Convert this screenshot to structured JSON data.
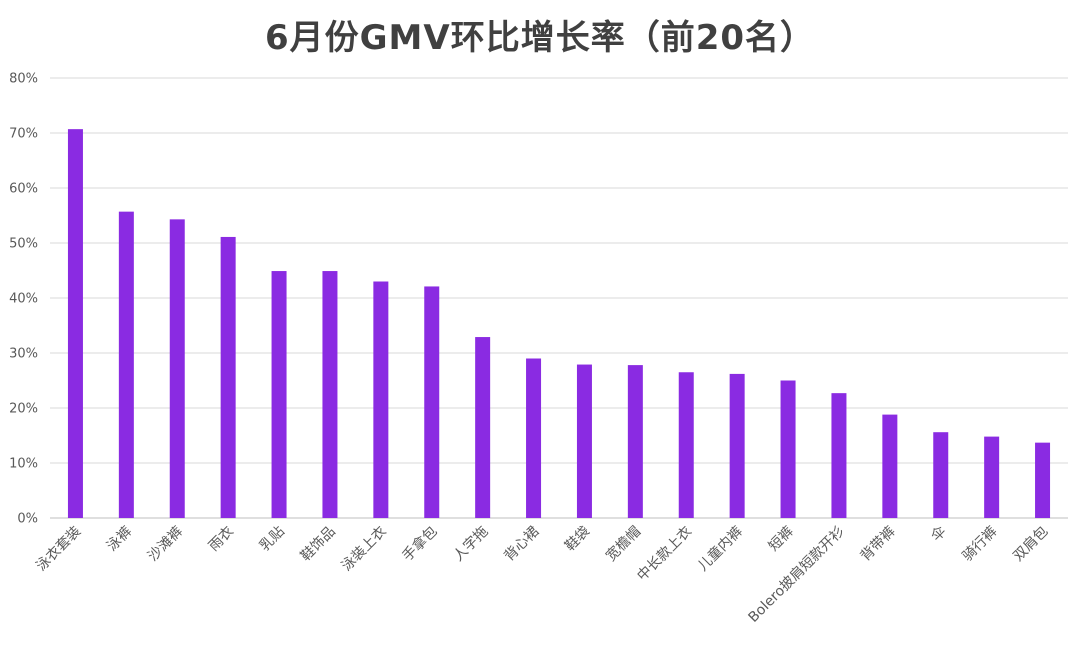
{
  "chart_data": {
    "type": "bar",
    "title": "6月份GMV环比增长率（前20名）",
    "xlabel": "",
    "ylabel": "",
    "ylim": [
      0,
      0.8
    ],
    "y_ticks": [
      "0%",
      "10%",
      "20%",
      "30%",
      "40%",
      "50%",
      "60%",
      "70%",
      "80%"
    ],
    "grid": true,
    "legend": "none",
    "bar_color": "#8a2be2",
    "categories": [
      "泳衣套装",
      "泳裤",
      "沙滩裤",
      "雨衣",
      "乳贴",
      "鞋饰品",
      "泳装上衣",
      "手拿包",
      "人字拖",
      "背心裙",
      "鞋袋",
      "宽檐帽",
      "中长款上衣",
      "儿童内裤",
      "短裤",
      "Bolero披肩短款开衫",
      "背带裤",
      "伞",
      "骑行裤",
      "双肩包"
    ],
    "series": [
      {
        "values": [
          0.707,
          0.557,
          0.543,
          0.511,
          0.449,
          0.449,
          0.43,
          0.421,
          0.329,
          0.29,
          0.279,
          0.278,
          0.265,
          0.262,
          0.25,
          0.227,
          0.188,
          0.156,
          0.148,
          0.137
        ]
      }
    ]
  }
}
